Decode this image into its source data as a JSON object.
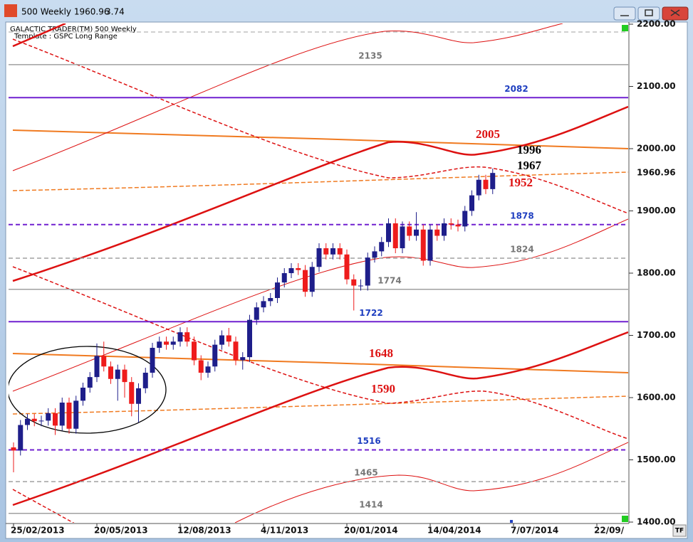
{
  "window_title": "500 Weekly 1960.96",
  "window_change": "3.74",
  "chart_data": {
    "type": "candlestick",
    "header": [
      "GALACTIC TRADER(TM)    500 Weekly",
      "Template : GSPC Long Range"
    ],
    "open": [
      1520,
      1515,
      1556,
      1566,
      1562,
      1563,
      1575,
      1555,
      1592,
      1550,
      1595,
      1616,
      1633,
      1667,
      1650,
      1630,
      1645,
      1625,
      1590,
      1615,
      1640,
      1680,
      1690,
      1685,
      1690,
      1705,
      1690,
      1660,
      1640,
      1650,
      1685,
      1700,
      1690,
      1660,
      1665,
      1725,
      1745,
      1755,
      1760,
      1785,
      1800,
      1808,
      1805,
      1770,
      1810,
      1840,
      1830,
      1840,
      1830,
      1790,
      1780,
      1780,
      1825,
      1835,
      1850,
      1880,
      1840,
      1875,
      1860,
      1870,
      1820,
      1870,
      1860,
      1880,
      1878,
      1875,
      1900,
      1925,
      1950,
      1935
    ],
    "high": [
      1528,
      1564,
      1574,
      1574,
      1571,
      1583,
      1583,
      1600,
      1600,
      1603,
      1624,
      1641,
      1687,
      1690,
      1658,
      1653,
      1653,
      1633,
      1623,
      1648,
      1688,
      1698,
      1698,
      1698,
      1713,
      1713,
      1698,
      1668,
      1658,
      1693,
      1708,
      1712,
      1698,
      1673,
      1733,
      1753,
      1763,
      1768,
      1793,
      1808,
      1816,
      1816,
      1813,
      1818,
      1848,
      1848,
      1848,
      1848,
      1838,
      1798,
      1790,
      1833,
      1843,
      1858,
      1888,
      1888,
      1883,
      1883,
      1898,
      1878,
      1878,
      1878,
      1888,
      1888,
      1886,
      1908,
      1933,
      1958,
      1958,
      1968
    ],
    "low": [
      1480,
      1507,
      1548,
      1554,
      1554,
      1555,
      1540,
      1547,
      1542,
      1542,
      1587,
      1608,
      1625,
      1642,
      1622,
      1595,
      1600,
      1570,
      1560,
      1607,
      1632,
      1672,
      1677,
      1677,
      1682,
      1682,
      1652,
      1628,
      1632,
      1642,
      1677,
      1682,
      1652,
      1645,
      1657,
      1717,
      1737,
      1747,
      1752,
      1777,
      1792,
      1797,
      1762,
      1762,
      1802,
      1822,
      1822,
      1822,
      1782,
      1740,
      1772,
      1772,
      1817,
      1827,
      1842,
      1832,
      1832,
      1852,
      1852,
      1812,
      1812,
      1852,
      1852,
      1870,
      1867,
      1867,
      1892,
      1917,
      1927,
      1927
    ],
    "close": [
      1515,
      1556,
      1566,
      1562,
      1563,
      1575,
      1555,
      1592,
      1550,
      1595,
      1616,
      1633,
      1667,
      1650,
      1630,
      1645,
      1625,
      1590,
      1615,
      1640,
      1680,
      1690,
      1685,
      1690,
      1705,
      1690,
      1660,
      1640,
      1650,
      1685,
      1700,
      1690,
      1660,
      1665,
      1725,
      1745,
      1755,
      1760,
      1785,
      1800,
      1808,
      1805,
      1770,
      1810,
      1840,
      1830,
      1840,
      1830,
      1790,
      1780,
      1780,
      1825,
      1835,
      1850,
      1880,
      1840,
      1875,
      1860,
      1870,
      1820,
      1870,
      1860,
      1880,
      1878,
      1875,
      1900,
      1925,
      1950,
      1935,
      1960.96
    ],
    "up_color": "#1e1e8a",
    "down_color": "#ee1c1c",
    "ylim": [
      1400,
      2200
    ],
    "yticks": [
      {
        "value": 1400,
        "label": "1400.00"
      },
      {
        "value": 1500,
        "label": "1500.00"
      },
      {
        "value": 1600,
        "label": "1600.00"
      },
      {
        "value": 1700,
        "label": "1700.00"
      },
      {
        "value": 1800,
        "label": "1800.00"
      },
      {
        "value": 1900,
        "label": "1900.00"
      },
      {
        "value": 2000,
        "label": "2000.00"
      },
      {
        "value": 2100,
        "label": "2100.00"
      },
      {
        "value": 2200,
        "label": "2200.00"
      }
    ],
    "xticks": [
      {
        "value": 0,
        "label": "25/02/2013"
      },
      {
        "value": 12,
        "label": "20/05/2013"
      },
      {
        "value": 24,
        "label": "12/08/2013"
      },
      {
        "value": 36,
        "label": "4/11/2013"
      },
      {
        "value": 48,
        "label": "20/01/2014"
      },
      {
        "value": 60,
        "label": "14/04/2014"
      },
      {
        "value": 72,
        "label": "7/07/2014"
      },
      {
        "value": 84,
        "label": "22/09/"
      }
    ],
    "levels": [
      {
        "value": 2135,
        "color": "#a0a0a0",
        "dashed": false,
        "label_color": "#777777"
      },
      {
        "value": 2082,
        "color": "#7020d0",
        "dashed": false,
        "label_color": "#1f3fc0"
      },
      {
        "value": 1878,
        "color": "#7020d0",
        "dashed": true,
        "label_color": "#1f3fc0"
      },
      {
        "value": 1824,
        "color": "#a0a0a0",
        "dashed": true,
        "label_color": "#777777"
      },
      {
        "value": 1774,
        "color": "#a0a0a0",
        "dashed": false,
        "label_color": "#777777"
      },
      {
        "value": 1722,
        "color": "#7020d0",
        "dashed": false,
        "label_color": "#1f3fc0"
      },
      {
        "value": 1516,
        "color": "#7020d0",
        "dashed": true,
        "label_color": "#1f3fc0"
      },
      {
        "value": 1465,
        "color": "#a0a0a0",
        "dashed": true,
        "label_color": "#777777"
      },
      {
        "value": 1414,
        "color": "#a0a0a0",
        "dashed": false,
        "label_color": "#777777"
      }
    ],
    "curve_labels": [
      {
        "value": 2005,
        "color": "#dd1111"
      },
      {
        "value": 1996,
        "color": "#000000"
      },
      {
        "value": 1967,
        "color": "#000000"
      },
      {
        "value": 1952,
        "color": "#dd1111"
      },
      {
        "value": 1648,
        "color": "#dd1111"
      },
      {
        "value": 1590,
        "color": "#dd1111"
      }
    ],
    "tf_button": "TF"
  }
}
